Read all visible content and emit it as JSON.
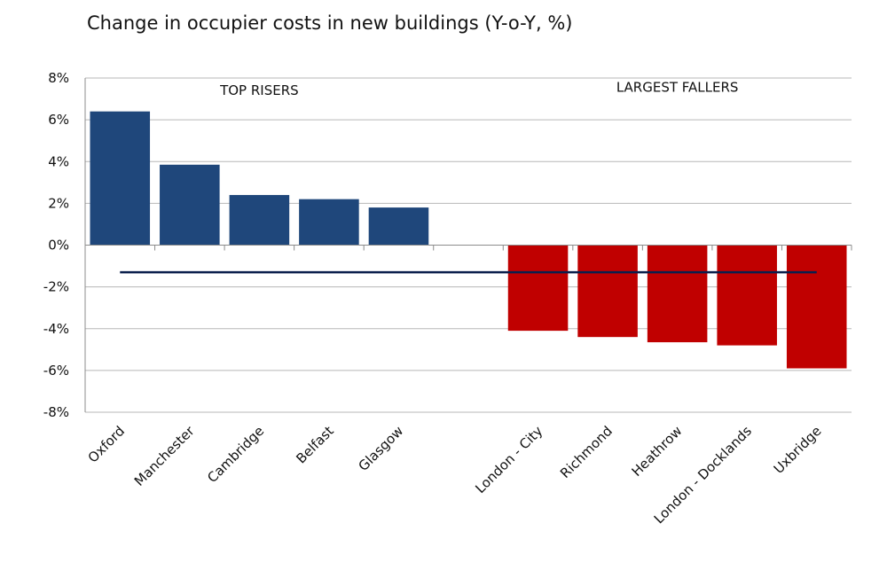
{
  "chart_data": {
    "type": "bar",
    "title": "Change in occupier costs in new buildings (Y-o-Y, %)",
    "xlabel": "",
    "ylabel": "",
    "ylim": [
      -8,
      8
    ],
    "yticks": [
      8,
      6,
      4,
      2,
      0,
      -2,
      -4,
      -6,
      -8
    ],
    "ytick_labels": [
      "8%",
      "6%",
      "4%",
      "2%",
      "0%",
      "-2%",
      "-4%",
      "-6%",
      "-8%"
    ],
    "grid": true,
    "categories": [
      "Oxford",
      "Manchester",
      "Cambridge",
      "Belfast",
      "Glasgow",
      "",
      "London - City",
      "Richmond",
      "Heathrow",
      "London - Docklands",
      "Uxbridge"
    ],
    "values": [
      6.4,
      3.85,
      2.4,
      2.2,
      1.8,
      null,
      -4.1,
      -4.4,
      -4.65,
      -4.8,
      -5.9
    ],
    "reference_line": {
      "value": -1.3
    },
    "annotations": [
      {
        "text": "TOP RISERS",
        "near": "Cambridge"
      },
      {
        "text": "LARGEST FALLERS",
        "near": "Heathrow"
      }
    ],
    "colors": {
      "risers": "#1f477b",
      "fallers": "#c00000",
      "reference": "#0b1f4d",
      "grid": "#b7b7b7"
    }
  }
}
